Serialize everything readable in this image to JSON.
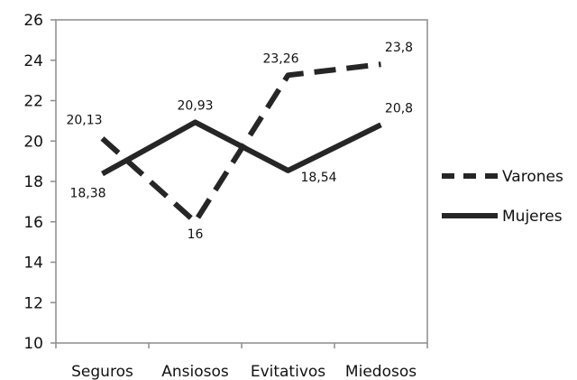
{
  "chart_data": {
    "type": "line",
    "categories": [
      "Seguros",
      "Ansiosos",
      "Evitativos",
      "Miedosos"
    ],
    "ylim": [
      10,
      26
    ],
    "yticks": [
      10,
      12,
      14,
      16,
      18,
      20,
      22,
      24,
      26
    ],
    "grid": false,
    "legend_position": "right",
    "series": [
      {
        "name": "Varones",
        "values": [
          20.13,
          16,
          23.26,
          23.8
        ],
        "labels": [
          "20,13",
          "16",
          "23,26",
          "23,8"
        ],
        "style": "dashed",
        "color": "#262626"
      },
      {
        "name": "Mujeres",
        "values": [
          18.38,
          20.93,
          18.54,
          20.8
        ],
        "labels": [
          "18,38",
          "20,93",
          "18,54",
          "20,8"
        ],
        "style": "solid",
        "color": "#262626"
      }
    ]
  }
}
